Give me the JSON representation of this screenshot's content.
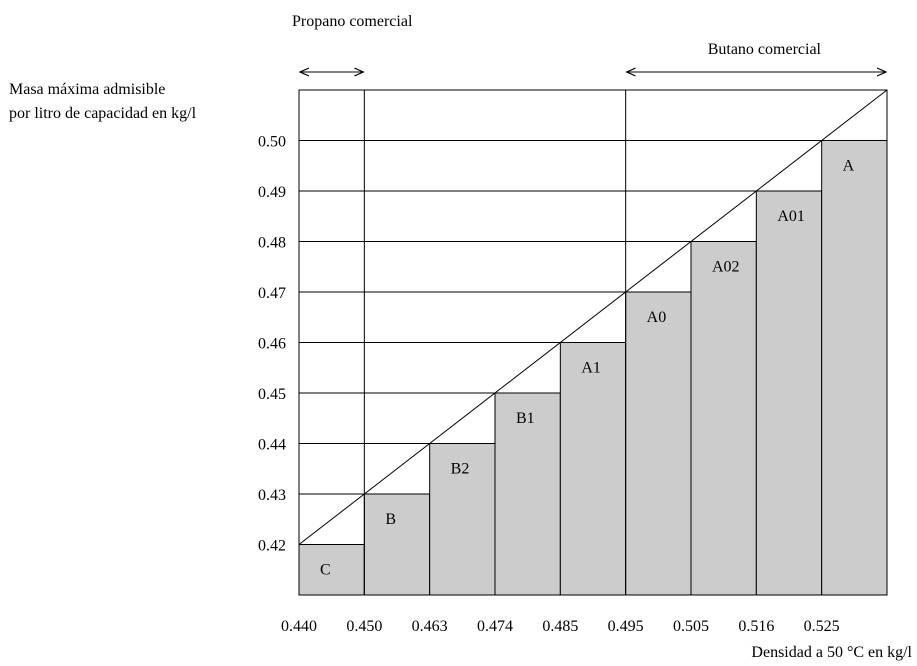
{
  "chart_data": {
    "type": "bar",
    "ylabel": [
      "Masa máxima admisible",
      "por litro de capacidad en kg/l"
    ],
    "xlabel": "Densidad a 50 °C en kg/l",
    "x_ticks": [
      "0.440",
      "0.450",
      "0.463",
      "0.474",
      "0.485",
      "0.495",
      "0.505",
      "0.516",
      "0.525"
    ],
    "y_ticks": [
      "0.42",
      "0.43",
      "0.44",
      "0.45",
      "0.46",
      "0.47",
      "0.48",
      "0.49",
      "0.50"
    ],
    "ylim": [
      0.41,
      0.51
    ],
    "bars": [
      {
        "label": "C",
        "value": 0.42
      },
      {
        "label": "B",
        "value": 0.43
      },
      {
        "label": "B2",
        "value": 0.44
      },
      {
        "label": "B1",
        "value": 0.45
      },
      {
        "label": "A1",
        "value": 0.46
      },
      {
        "label": "A0",
        "value": 0.47
      },
      {
        "label": "A02",
        "value": 0.48
      },
      {
        "label": "A01",
        "value": 0.49
      },
      {
        "label": "A",
        "value": 0.5
      }
    ],
    "ranges": [
      {
        "label": "Propano comercial",
        "from_index": 0,
        "to_index": 1
      },
      {
        "label": "Butano comercial",
        "from_index": 5,
        "to_index": 9
      }
    ],
    "colors": {
      "bar_fill": "#cccccc",
      "line": "#000000"
    }
  }
}
